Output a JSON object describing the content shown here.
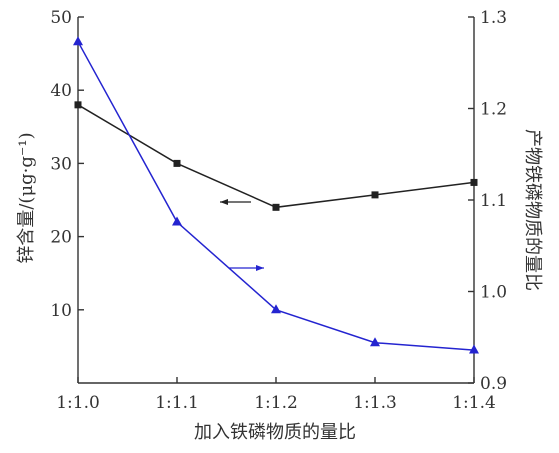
{
  "chart_data": {
    "type": "line",
    "categories": [
      "1:1.0",
      "1:1.1",
      "1:1.2",
      "1:1.3",
      "1:1.4"
    ],
    "xlabel": "加入铁磷物质的量比",
    "ylabel_left": "锌含量/(μg·g⁻¹)",
    "ylabel_right": "产物铁磷物质的量比",
    "ylim_left": [
      0,
      50
    ],
    "ylim_right": [
      0.9,
      1.3
    ],
    "yticks_left": [
      "10",
      "20",
      "30",
      "40",
      "50"
    ],
    "yticks_right": [
      "0.9",
      "1.0",
      "1.1",
      "1.2",
      "1.3"
    ],
    "grid": false,
    "series": [
      {
        "axis": "left",
        "color": "#222222",
        "marker": "square",
        "values": [
          38.0,
          30.0,
          24.0,
          25.7,
          27.4
        ]
      },
      {
        "axis": "right",
        "color": "#2424d0",
        "marker": "triangle",
        "values": [
          1.273,
          1.076,
          0.98,
          0.944,
          0.936
        ]
      }
    ],
    "annotations": [
      {
        "type": "arrow",
        "direction": "left",
        "points_to": "left-axis",
        "color": "#222222"
      },
      {
        "type": "arrow",
        "direction": "right",
        "points_to": "right-axis",
        "color": "#2424d0"
      }
    ]
  }
}
